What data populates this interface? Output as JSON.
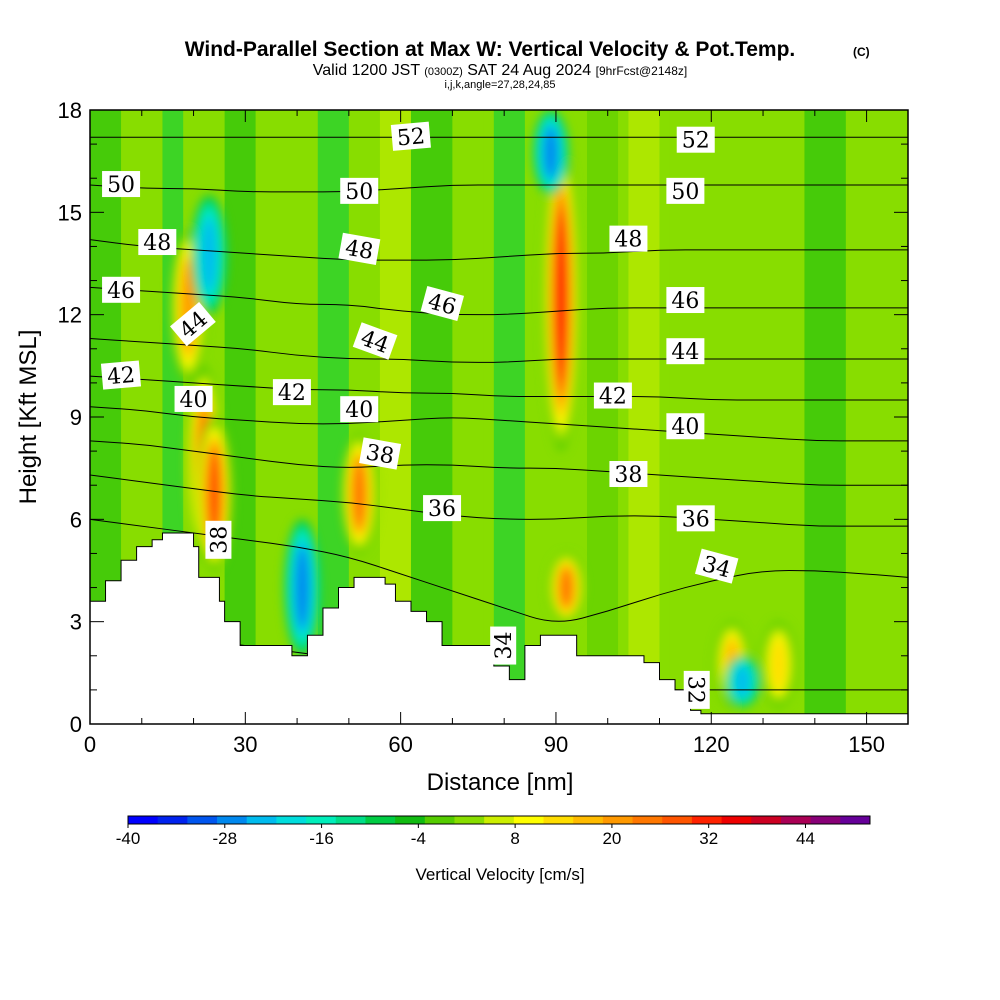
{
  "header": {
    "title": "Wind-Parallel Section at Max W: Vertical Velocity & Pot.Temp.",
    "copyright": "(C)",
    "valid_prefix": "Valid 1200 JST",
    "valid_utc": "(0300Z)",
    "valid_date": "SAT 24 Aug 2024",
    "forecast": "[9hrFcst@2148z]",
    "params": "i,j,k,angle=27,28,24,85"
  },
  "chart_data": {
    "type": "heatmap",
    "xlabel": "Distance [nm]",
    "ylabel": "Height [Kft MSL]",
    "xlim": [
      0,
      158
    ],
    "ylim": [
      0,
      18
    ],
    "x_ticks": [
      0,
      30,
      60,
      90,
      120,
      150
    ],
    "y_ticks": [
      0,
      3,
      6,
      9,
      12,
      15,
      18
    ],
    "colorbar": {
      "label": "Vertical Velocity [cm/s]",
      "tick_values": [
        -40,
        -28,
        -16,
        -4,
        8,
        20,
        32,
        44
      ],
      "tick_labels": [
        "-40",
        "-28",
        "-16",
        "-4",
        "8",
        "20",
        "32",
        "44"
      ],
      "range": [
        -40,
        48
      ],
      "step": 4,
      "colors": [
        "#0000ff",
        "#0022ee",
        "#0055ee",
        "#0088ee",
        "#00bbee",
        "#00dddd",
        "#00eebb",
        "#00dd88",
        "#00cc44",
        "#11bb11",
        "#55cc00",
        "#88dd00",
        "#ccee00",
        "#ffff00",
        "#ffdd00",
        "#ffbb00",
        "#ff9900",
        "#ff7700",
        "#ff5500",
        "#ff2200",
        "#ee0000",
        "#cc0022",
        "#aa0055",
        "#880077",
        "#660099"
      ]
    },
    "vertical_velocity_features": [
      {
        "x": 22,
        "y_range": [
          4.8,
          10.5
        ],
        "peak": 32
      },
      {
        "x": 24,
        "y_range": [
          4.5,
          9.0
        ],
        "peak": 36
      },
      {
        "x": 19,
        "y_range": [
          10.0,
          14.5
        ],
        "peak": 28
      },
      {
        "x": 52,
        "y_range": [
          5.0,
          8.5
        ],
        "peak": 30
      },
      {
        "x": 91,
        "y_range": [
          8.0,
          17.0
        ],
        "peak": 40
      },
      {
        "x": 92,
        "y_range": [
          3.0,
          5.0
        ],
        "peak": 32
      },
      {
        "x": 124,
        "y_range": [
          0.5,
          3.0
        ],
        "peak": 24
      },
      {
        "x": 133,
        "y_range": [
          0.5,
          3.0
        ],
        "peak": 20
      },
      {
        "x": 41,
        "y_range": [
          2.0,
          6.0
        ],
        "peak": -22
      },
      {
        "x": 23,
        "y_range": [
          12.0,
          15.5
        ],
        "peak": -18
      },
      {
        "x": 89,
        "y_range": [
          15.5,
          18.0
        ],
        "peak": -24
      },
      {
        "x": 126,
        "y_range": [
          0.5,
          2.0
        ],
        "peak": -18
      }
    ],
    "theta_isentropes": [
      {
        "value": 32,
        "label": "32",
        "y": [
          2.8,
          2.6,
          2.5,
          2.3,
          2.1,
          1.9,
          1.6,
          1.4,
          1.3,
          1.2,
          1.1,
          1.0,
          1.0,
          1.0,
          1.0,
          1.0,
          1.0
        ]
      },
      {
        "value": 34,
        "label": "34",
        "y": [
          6.0,
          5.8,
          5.6,
          5.4,
          5.2,
          4.9,
          4.4,
          3.9,
          3.4,
          2.9,
          3.3,
          3.8,
          4.2,
          4.5,
          4.5,
          4.4,
          4.3
        ]
      },
      {
        "value": 36,
        "label": "36",
        "y": [
          7.3,
          7.1,
          6.9,
          6.7,
          6.6,
          6.5,
          6.3,
          6.1,
          6.0,
          6.0,
          6.1,
          6.1,
          6.0,
          5.9,
          5.8,
          5.8,
          5.8
        ]
      },
      {
        "value": 38,
        "label": "38",
        "y": [
          8.3,
          8.2,
          8.0,
          7.8,
          7.6,
          7.5,
          7.6,
          7.6,
          7.5,
          7.5,
          7.4,
          7.3,
          7.2,
          7.1,
          7.0,
          7.0,
          7.0
        ]
      },
      {
        "value": 40,
        "label": "40",
        "y": [
          9.3,
          9.2,
          9.0,
          8.9,
          8.8,
          8.8,
          8.9,
          9.0,
          8.9,
          8.8,
          8.7,
          8.6,
          8.5,
          8.4,
          8.3,
          8.3,
          8.3
        ]
      },
      {
        "value": 42,
        "label": "42",
        "y": [
          10.2,
          10.1,
          10.0,
          9.9,
          9.8,
          9.8,
          9.7,
          9.7,
          9.6,
          9.6,
          9.6,
          9.6,
          9.5,
          9.5,
          9.5,
          9.5,
          9.5
        ]
      },
      {
        "value": 44,
        "label": "44",
        "y": [
          11.3,
          11.2,
          11.1,
          11.0,
          10.8,
          10.7,
          10.7,
          10.6,
          10.6,
          10.7,
          10.7,
          10.7,
          10.7,
          10.7,
          10.7,
          10.7,
          10.7
        ]
      },
      {
        "value": 46,
        "label": "46",
        "y": [
          12.8,
          12.7,
          12.6,
          12.5,
          12.3,
          12.3,
          12.1,
          12.0,
          12.0,
          12.1,
          12.2,
          12.2,
          12.2,
          12.2,
          12.2,
          12.2,
          12.2
        ]
      },
      {
        "value": 48,
        "label": "48",
        "y": [
          14.2,
          14.0,
          13.9,
          13.8,
          13.7,
          13.6,
          13.6,
          13.6,
          13.7,
          13.8,
          13.8,
          13.9,
          13.9,
          13.9,
          13.9,
          13.9,
          13.9
        ]
      },
      {
        "value": 50,
        "label": "50",
        "y": [
          15.8,
          15.7,
          15.7,
          15.6,
          15.6,
          15.6,
          15.7,
          15.8,
          15.8,
          15.8,
          15.8,
          15.8,
          15.8,
          15.8,
          15.8,
          15.8,
          15.8
        ]
      },
      {
        "value": 52,
        "label": "52",
        "y": [
          17.2,
          17.2,
          17.2,
          17.2,
          17.2,
          17.2,
          17.2,
          17.2,
          17.2,
          17.2,
          17.2,
          17.2,
          17.2,
          17.2,
          17.2,
          17.2,
          17.2
        ]
      }
    ],
    "isentrope_x": [
      0,
      10,
      20,
      30,
      40,
      50,
      60,
      70,
      80,
      90,
      100,
      110,
      120,
      130,
      140,
      150,
      158
    ],
    "contour_labels": [
      {
        "text": "52",
        "x": 62,
        "y": 17.2,
        "angle": -5
      },
      {
        "text": "52",
        "x": 117,
        "y": 17.1,
        "angle": 0
      },
      {
        "text": "50",
        "x": 6,
        "y": 15.8,
        "angle": 0
      },
      {
        "text": "50",
        "x": 52,
        "y": 15.6,
        "angle": 0
      },
      {
        "text": "50",
        "x": 115,
        "y": 15.6,
        "angle": 0
      },
      {
        "text": "48",
        "x": 13,
        "y": 14.1,
        "angle": 0
      },
      {
        "text": "48",
        "x": 52,
        "y": 13.9,
        "angle": 10
      },
      {
        "text": "48",
        "x": 104,
        "y": 14.2,
        "angle": 0
      },
      {
        "text": "46",
        "x": 6,
        "y": 12.7,
        "angle": 0
      },
      {
        "text": "46",
        "x": 68,
        "y": 12.3,
        "angle": 15
      },
      {
        "text": "46",
        "x": 115,
        "y": 12.4,
        "angle": 0
      },
      {
        "text": "44",
        "x": 20,
        "y": 11.7,
        "angle": -40
      },
      {
        "text": "44",
        "x": 55,
        "y": 11.2,
        "angle": 20
      },
      {
        "text": "44",
        "x": 115,
        "y": 10.9,
        "angle": 0
      },
      {
        "text": "42",
        "x": 6,
        "y": 10.2,
        "angle": -5
      },
      {
        "text": "42",
        "x": 39,
        "y": 9.7,
        "angle": 0
      },
      {
        "text": "42",
        "x": 101,
        "y": 9.6,
        "angle": 0
      },
      {
        "text": "40",
        "x": 20,
        "y": 9.5,
        "angle": 0
      },
      {
        "text": "40",
        "x": 52,
        "y": 9.2,
        "angle": 0
      },
      {
        "text": "40",
        "x": 115,
        "y": 8.7,
        "angle": 0
      },
      {
        "text": "38",
        "x": 56,
        "y": 7.9,
        "angle": 10
      },
      {
        "text": "38",
        "x": 104,
        "y": 7.3,
        "angle": 0
      },
      {
        "text": "38",
        "x": 25,
        "y": 5.4,
        "angle": -90
      },
      {
        "text": "36",
        "x": 68,
        "y": 6.3,
        "angle": 0
      },
      {
        "text": "36",
        "x": 117,
        "y": 6.0,
        "angle": 0
      },
      {
        "text": "34",
        "x": 121,
        "y": 4.6,
        "angle": 15
      },
      {
        "text": "34",
        "x": 80,
        "y": 2.3,
        "angle": -90
      },
      {
        "text": "32",
        "x": 117,
        "y": 1.0,
        "angle": 90
      }
    ],
    "terrain": [
      [
        0,
        3.6
      ],
      [
        3,
        3.6
      ],
      [
        3,
        4.2
      ],
      [
        6,
        4.2
      ],
      [
        6,
        4.8
      ],
      [
        9,
        4.8
      ],
      [
        9,
        5.2
      ],
      [
        12,
        5.2
      ],
      [
        12,
        5.4
      ],
      [
        14,
        5.4
      ],
      [
        14,
        5.6
      ],
      [
        20,
        5.6
      ],
      [
        20,
        5.2
      ],
      [
        21,
        5.2
      ],
      [
        21,
        4.3
      ],
      [
        25,
        4.3
      ],
      [
        25,
        3.6
      ],
      [
        26,
        3.6
      ],
      [
        26,
        3.0
      ],
      [
        29,
        3.0
      ],
      [
        29,
        2.3
      ],
      [
        39,
        2.3
      ],
      [
        39,
        2.0
      ],
      [
        42,
        2.0
      ],
      [
        42,
        2.6
      ],
      [
        45,
        2.6
      ],
      [
        45,
        3.4
      ],
      [
        48,
        3.4
      ],
      [
        48,
        4.0
      ],
      [
        51,
        4.0
      ],
      [
        51,
        4.3
      ],
      [
        57,
        4.3
      ],
      [
        57,
        4.1
      ],
      [
        59,
        4.1
      ],
      [
        59,
        3.6
      ],
      [
        62,
        3.6
      ],
      [
        62,
        3.3
      ],
      [
        65,
        3.3
      ],
      [
        65,
        3.0
      ],
      [
        68,
        3.0
      ],
      [
        68,
        2.3
      ],
      [
        78,
        2.3
      ],
      [
        78,
        1.7
      ],
      [
        81,
        1.7
      ],
      [
        81,
        1.3
      ],
      [
        84,
        1.3
      ],
      [
        84,
        2.3
      ],
      [
        87,
        2.3
      ],
      [
        87,
        2.6
      ],
      [
        94,
        2.6
      ],
      [
        94,
        2.0
      ],
      [
        107,
        2.0
      ],
      [
        107,
        1.8
      ],
      [
        110,
        1.8
      ],
      [
        110,
        1.3
      ],
      [
        113,
        1.3
      ],
      [
        113,
        1.0
      ],
      [
        116,
        1.0
      ],
      [
        116,
        0.4
      ],
      [
        118,
        0.4
      ],
      [
        118,
        0.3
      ],
      [
        158,
        0.3
      ]
    ]
  }
}
